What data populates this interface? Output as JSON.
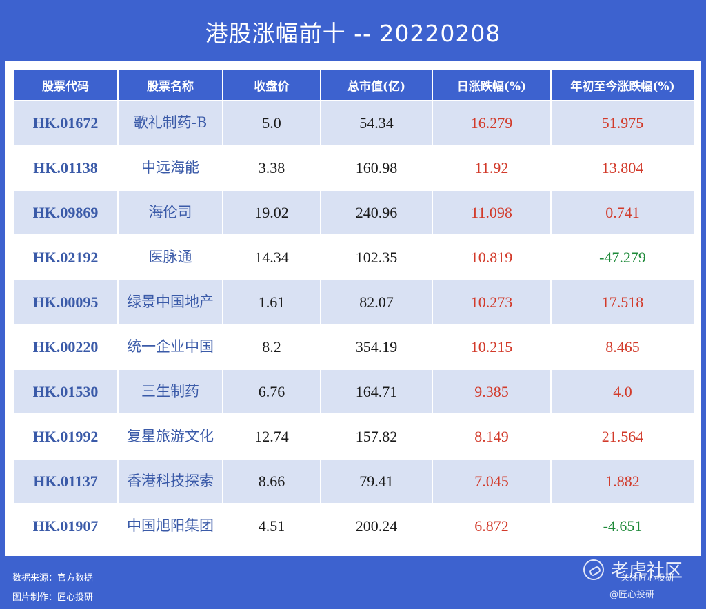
{
  "title": "港股涨幅前十 -- 20220208",
  "columns": [
    "股票代码",
    "股票名称",
    "收盘价",
    "总市值(亿)",
    "日涨跌幅(%)",
    "年初至今涨跌幅(%)"
  ],
  "rows": [
    {
      "code": "HK.01672",
      "name": "歌礼制药-B",
      "close": "5.0",
      "mktcap": "54.34",
      "day": "16.279",
      "ytd": "51.975",
      "ytd_dir": "up"
    },
    {
      "code": "HK.01138",
      "name": "中远海能",
      "close": "3.38",
      "mktcap": "160.98",
      "day": "11.92",
      "ytd": "13.804",
      "ytd_dir": "up"
    },
    {
      "code": "HK.09869",
      "name": "海伦司",
      "close": "19.02",
      "mktcap": "240.96",
      "day": "11.098",
      "ytd": "0.741",
      "ytd_dir": "up"
    },
    {
      "code": "HK.02192",
      "name": "医脉通",
      "close": "14.34",
      "mktcap": "102.35",
      "day": "10.819",
      "ytd": "-47.279",
      "ytd_dir": "down"
    },
    {
      "code": "HK.00095",
      "name": "绿景中国地产",
      "close": "1.61",
      "mktcap": "82.07",
      "day": "10.273",
      "ytd": "17.518",
      "ytd_dir": "up"
    },
    {
      "code": "HK.00220",
      "name": "统一企业中国",
      "close": "8.2",
      "mktcap": "354.19",
      "day": "10.215",
      "ytd": "8.465",
      "ytd_dir": "up"
    },
    {
      "code": "HK.01530",
      "name": "三生制药",
      "close": "6.76",
      "mktcap": "164.71",
      "day": "9.385",
      "ytd": "4.0",
      "ytd_dir": "up"
    },
    {
      "code": "HK.01992",
      "name": "复星旅游文化",
      "close": "12.74",
      "mktcap": "157.82",
      "day": "8.149",
      "ytd": "21.564",
      "ytd_dir": "up"
    },
    {
      "code": "HK.01137",
      "name": "香港科技探索",
      "close": "8.66",
      "mktcap": "79.41",
      "day": "7.045",
      "ytd": "1.882",
      "ytd_dir": "up"
    },
    {
      "code": "HK.01907",
      "name": "中国旭阳集团",
      "close": "4.51",
      "mktcap": "200.24",
      "day": "6.872",
      "ytd": "-4.651",
      "ytd_dir": "down"
    }
  ],
  "footer": {
    "source": "数据来源：官方数据",
    "maker": "图片制作：匠心投研"
  },
  "watermark": {
    "brand": "老虎社区",
    "line1": "关注匠心投研",
    "line2": "@匠心投研"
  },
  "colors": {
    "background": "#3d62cf",
    "row_alt": "#d9e1f3",
    "code_text": "#3a5aa8",
    "up": "#d23a2a",
    "down": "#1f8a3a"
  }
}
